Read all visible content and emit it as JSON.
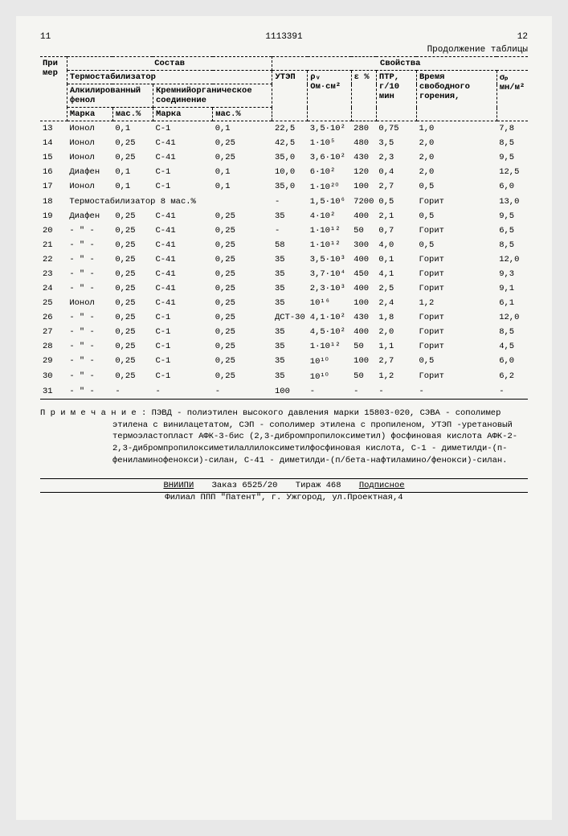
{
  "header": {
    "page_left": "11",
    "doc_number": "1113391",
    "page_right": "12",
    "continuation": "Продолжение таблицы"
  },
  "table": {
    "group_headers": {
      "col1": "При мер",
      "composition": "Состав",
      "properties": "Свойства",
      "thermostab": "Термостабилизатор",
      "alkphenol": "Алкилированный фенол",
      "siliconorg": "Кремнийорганическое соединение"
    },
    "col_headers": {
      "marka1": "Марка",
      "mass1": "мас.%",
      "marka2": "Марка",
      "mass2": "мас.%",
      "utep": "УТЭП",
      "rho_v": "ρᵥ Ом·см²",
      "eps": "ε %",
      "ptr": "ПТР, г/10 мин",
      "burn": "Время свободного горения,",
      "sigma_p": "σₚ мн/м²"
    },
    "rows": [
      {
        "n": "13",
        "m1": "Ионол",
        "p1": "0,1",
        "m2": "С-1",
        "p2": "0,1",
        "utep": "22,5",
        "rho": "3,5·10²",
        "eps": "280",
        "ptr": "0,75",
        "burn": "1,0",
        "sig": "7,8"
      },
      {
        "n": "14",
        "m1": "Ионол",
        "p1": "0,25",
        "m2": "С-41",
        "p2": "0,25",
        "utep": "42,5",
        "rho": "1·10⁵",
        "eps": "480",
        "ptr": "3,5",
        "burn": "2,0",
        "sig": "8,5"
      },
      {
        "n": "15",
        "m1": "Ионол",
        "p1": "0,25",
        "m2": "С-41",
        "p2": "0,25",
        "utep": "35,0",
        "rho": "3,6·10²",
        "eps": "430",
        "ptr": "2,3",
        "burn": "2,0",
        "sig": "9,5"
      },
      {
        "n": "16",
        "m1": "Диафен",
        "p1": "0,1",
        "m2": "С-1",
        "p2": "0,1",
        "utep": "10,0",
        "rho": "6·10²",
        "eps": "120",
        "ptr": "0,4",
        "burn": "2,0",
        "sig": "12,5"
      },
      {
        "n": "17",
        "m1": "Ионол",
        "p1": "0,1",
        "m2": "С-1",
        "p2": "0,1",
        "utep": "35,0",
        "rho": "1·10²⁰",
        "eps": "100",
        "ptr": "2,7",
        "burn": "0,5",
        "sig": "6,0"
      },
      {
        "n": "18",
        "m1": "Термостабилизатор 8 мас.%",
        "p1": "",
        "m2": "",
        "p2": "",
        "utep": "-",
        "rho": "1,5·10⁶",
        "eps": "7200",
        "ptr": "0,5",
        "burn": "Горит",
        "sig": "13,0"
      },
      {
        "n": "19",
        "m1": "Диафен",
        "p1": "0,25",
        "m2": "С-41",
        "p2": "0,25",
        "utep": "35",
        "rho": "4·10²",
        "eps": "400",
        "ptr": "2,1",
        "burn": "0,5",
        "sig": "9,5"
      },
      {
        "n": "20",
        "m1": "- \" -",
        "p1": "0,25",
        "m2": "С-41",
        "p2": "0,25",
        "utep": "-",
        "rho": "1·10¹²",
        "eps": "50",
        "ptr": "0,7",
        "burn": "Горит",
        "sig": "6,5"
      },
      {
        "n": "21",
        "m1": "- \" -",
        "p1": "0,25",
        "m2": "С-41",
        "p2": "0,25",
        "utep": "58",
        "rho": "1·10¹²",
        "eps": "300",
        "ptr": "4,0",
        "burn": "0,5",
        "sig": "8,5"
      },
      {
        "n": "22",
        "m1": "- \" -",
        "p1": "0,25",
        "m2": "С-41",
        "p2": "0,25",
        "utep": "35",
        "rho": "3,5·10³",
        "eps": "400",
        "ptr": "0,1",
        "burn": "Горит",
        "sig": "12,0"
      },
      {
        "n": "23",
        "m1": "- \" -",
        "p1": "0,25",
        "m2": "С-41",
        "p2": "0,25",
        "utep": "35",
        "rho": "3,7·10⁴",
        "eps": "450",
        "ptr": "4,1",
        "burn": "Горит",
        "sig": "9,3"
      },
      {
        "n": "24",
        "m1": "- \" -",
        "p1": "0,25",
        "m2": "С-41",
        "p2": "0,25",
        "utep": "35",
        "rho": "2,3·10³",
        "eps": "400",
        "ptr": "2,5",
        "burn": "Горит",
        "sig": "9,1"
      },
      {
        "n": "25",
        "m1": "Ионол",
        "p1": "0,25",
        "m2": "С-41",
        "p2": "0,25",
        "utep": "35",
        "rho": "10¹⁶",
        "eps": "100",
        "ptr": "2,4",
        "burn": "1,2",
        "sig": "6,1"
      },
      {
        "n": "26",
        "m1": "- \" -",
        "p1": "0,25",
        "m2": "С-1",
        "p2": "0,25",
        "utep": "ДСТ-30",
        "rho": "4,1·10²",
        "eps": "430",
        "ptr": "1,8",
        "burn": "Горит",
        "sig": "12,0"
      },
      {
        "n": "27",
        "m1": "- \" -",
        "p1": "0,25",
        "m2": "С-1",
        "p2": "0,25",
        "utep": "35",
        "rho": "4,5·10²",
        "eps": "400",
        "ptr": "2,0",
        "burn": "Горит",
        "sig": "8,5"
      },
      {
        "n": "28",
        "m1": "- \" -",
        "p1": "0,25",
        "m2": "С-1",
        "p2": "0,25",
        "utep": "35",
        "rho": "1·10¹²",
        "eps": "50",
        "ptr": "1,1",
        "burn": "Горит",
        "sig": "4,5"
      },
      {
        "n": "29",
        "m1": "- \" -",
        "p1": "0,25",
        "m2": "С-1",
        "p2": "0,25",
        "utep": "35",
        "rho": "10¹⁰",
        "eps": "100",
        "ptr": "2,7",
        "burn": "0,5",
        "sig": "6,0"
      },
      {
        "n": "30",
        "m1": "- \" -",
        "p1": "0,25",
        "m2": "С-1",
        "p2": "0,25",
        "utep": "35",
        "rho": "10¹⁰",
        "eps": "50",
        "ptr": "1,2",
        "burn": "Горит",
        "sig": "6,2"
      },
      {
        "n": "31",
        "m1": "- \" -",
        "p1": "-",
        "m2": "-",
        "p2": "-",
        "utep": "100",
        "rho": "-",
        "eps": "-",
        "ptr": "-",
        "burn": "-",
        "sig": "-"
      }
    ]
  },
  "note": {
    "label": "П р и м е ч а н и е :",
    "text": "ПЭВД - полиэтилен высокого давления марки 15803-020, СЭВА - сополимер этилена с винилацетатом, СЭП - сополимер этилена с пропиленом, УТЭП -уретановый термоэластопласт АФК-3-бис (2,3-дибромпропилоксиметил) фосфиновая кислота АФК-2-2,3-дибромпропилоксиметилаллилоксиметилфосфиновая кислота, С-1 - диметилди-(п-фениламинофенокси)-силан, С-41 - диметилди-(п/бета-нафтиламино/фенокси)-силан."
  },
  "footer": {
    "org": "ВНИИПИ",
    "order": "Заказ 6525/20",
    "tirazh": "Тираж 468",
    "sub": "Подписное",
    "branch": "Филиал ППП \"Патент\", г. Ужгород, ул.Проектная,4"
  }
}
